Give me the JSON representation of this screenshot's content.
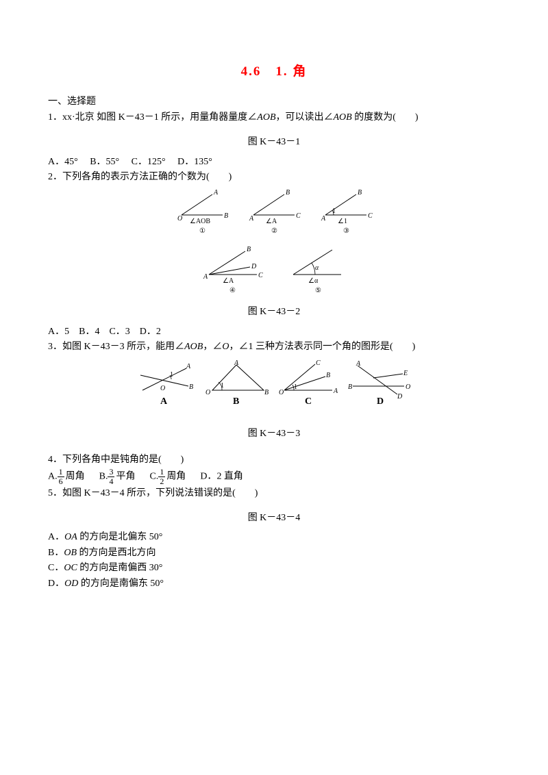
{
  "title": "4.6　1. 角",
  "section1": "一、选择题",
  "q1": {
    "stem": "1．xx·北京 如图 K－43－1 所示，用量角器量度∠<span class='italic-var'>AOB</span>，可以读出∠<span class='italic-var'>AOB</span> 的度数为(　　)",
    "fig": "图 K－43－1",
    "opts": "A．45°　 B．55°　 C．125°　 D．135°"
  },
  "q2": {
    "stem": "2．下列各角的表示方法正确的个数为(　　)",
    "fig": "图 K－43－2",
    "opts": "A．5　B．4　C．3　D．2",
    "diag": {
      "labels_row1": [
        {
          "vA": "A",
          "vB": "B",
          "origin": "O",
          "angle": "∠AOB",
          "circ": "①"
        },
        {
          "vA": "B",
          "vB": "C",
          "origin": "A",
          "angle": "∠A",
          "circ": "②"
        },
        {
          "vA": "B",
          "vB": "C",
          "origin": "A",
          "angle": "∠1",
          "circ": "③",
          "arc": "1"
        }
      ],
      "labels_row2": [
        {
          "origin": "A",
          "top": "B",
          "mid": "D",
          "low": "C",
          "angle": "∠A",
          "circ": "④"
        },
        {
          "angle": "∠α",
          "circ": "⑤",
          "arc": "α"
        }
      ]
    }
  },
  "q3": {
    "stem": "3．如图 K－43－3 所示，能用∠<span class='italic-var'>AOB</span>，∠<span class='italic-var'>O</span>，∠1 三种方法表示同一个角的图形是(　　)",
    "fig": "图 K－43－3",
    "opts_letters": [
      "A",
      "B",
      "C",
      "D"
    ]
  },
  "q4": {
    "stem": "4．下列各角中是钝角的是(　　)",
    "opts": [
      {
        "letter": "A.",
        "num": "1",
        "den": "6",
        "suf": "周角"
      },
      {
        "letter": "B.",
        "num": "3",
        "den": "4",
        "suf": "平角"
      },
      {
        "letter": "C.",
        "num": "1",
        "den": "2",
        "suf": "周角"
      },
      {
        "letter": "D．",
        "plain": "2 直角"
      }
    ]
  },
  "q5": {
    "stem": "5．如图 K－43－4 所示，下列说法错误的是(　　)",
    "fig": "图 K－43－4",
    "a": "A．<span class='italic-var'>OA</span> 的方向是北偏东 50°",
    "b": "B．<span class='italic-var'>OB</span> 的方向是西北方向",
    "c": "C．<span class='italic-var'>OC</span> 的方向是南偏西 30°",
    "d": "D．<span class='italic-var'>OD</span> 的方向是南偏东 50°"
  }
}
